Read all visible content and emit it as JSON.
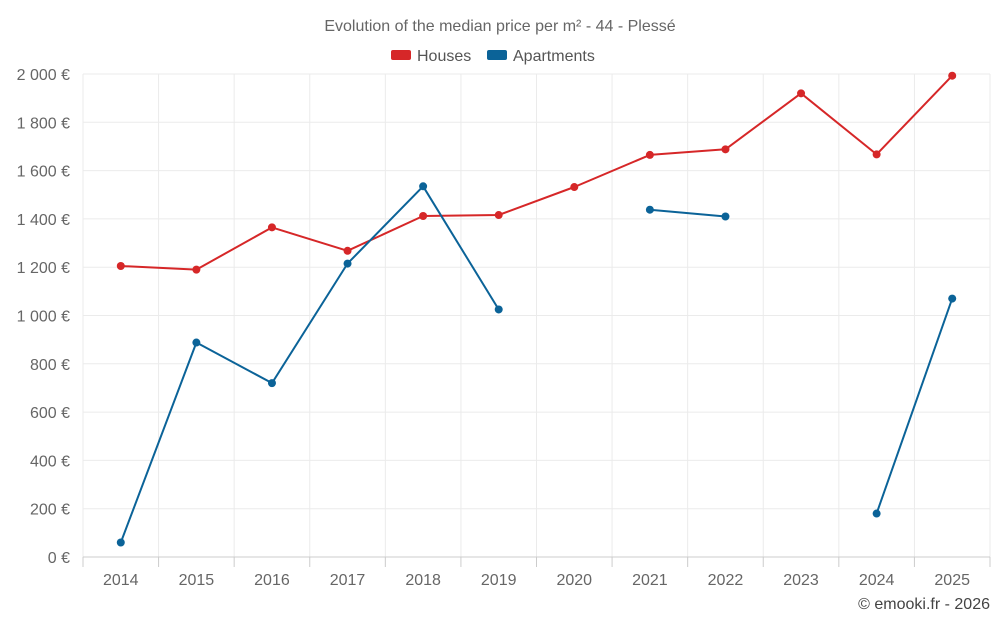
{
  "chart_data": {
    "type": "line",
    "title": "Evolution of the median price per m² - 44 - Plessé",
    "xlabel": "",
    "ylabel": "",
    "categories": [
      "2014",
      "2015",
      "2016",
      "2017",
      "2018",
      "2019",
      "2020",
      "2021",
      "2022",
      "2023",
      "2024",
      "2025"
    ],
    "ylim": [
      0,
      2000
    ],
    "yticks": [
      0,
      200,
      400,
      600,
      800,
      1000,
      1200,
      1400,
      1600,
      1800,
      2000
    ],
    "ytick_labels": [
      "0 €",
      "200 €",
      "400 €",
      "600 €",
      "800 €",
      "1 000 €",
      "1 200 €",
      "1 400 €",
      "1 600 €",
      "1 800 €",
      "2 000 €"
    ],
    "grid": true,
    "legend_position": "top-center",
    "series": [
      {
        "name": "Houses",
        "color": "#d62728",
        "values": [
          1205,
          1190,
          1365,
          1268,
          1412,
          1416,
          1532,
          1665,
          1688,
          1920,
          1667,
          1993
        ]
      },
      {
        "name": "Apartments",
        "color": "#0b6398",
        "values": [
          60,
          888,
          720,
          1215,
          1535,
          1025,
          null,
          1438,
          1410,
          null,
          180,
          1070
        ]
      }
    ],
    "credit": "© emooki.fr - 2026"
  }
}
